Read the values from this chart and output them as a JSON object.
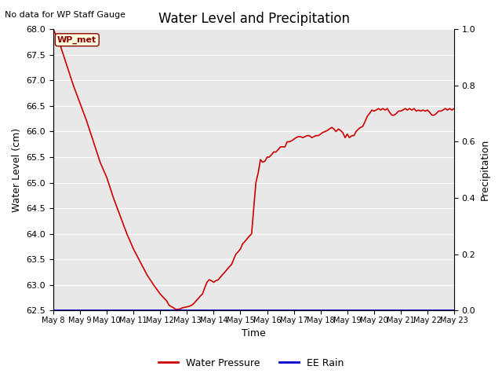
{
  "title": "Water Level and Precipitation",
  "top_left_note": "No data for WP Staff Gauge",
  "xlabel": "Time",
  "ylabel_left": "Water Level (cm)",
  "ylabel_right": "Precipitation",
  "ylim_left": [
    62.5,
    68.0
  ],
  "ylim_right": [
    0.0,
    1.0
  ],
  "yticks_left": [
    62.5,
    63.0,
    63.5,
    64.0,
    64.5,
    65.0,
    65.5,
    66.0,
    66.5,
    67.0,
    67.5,
    68.0
  ],
  "yticks_right": [
    0.0,
    0.2,
    0.4,
    0.6,
    0.8,
    1.0
  ],
  "xtick_labels": [
    "May 8",
    "May 9",
    "May 10",
    "May 11",
    "May 12",
    "May 13",
    "May 14",
    "May 15",
    "May 16",
    "May 17",
    "May 18",
    "May 19",
    "May 20",
    "May 21",
    "May 22",
    "May 23"
  ],
  "annotation_text": "WP_met",
  "line_color": "#cc0000",
  "rain_color": "#0000cc",
  "plot_bg_color": "#e8e8e8",
  "fig_bg_color": "#ffffff",
  "water_pressure_x": [
    0.0,
    0.25,
    0.5,
    0.75,
    1.0,
    1.25,
    1.5,
    1.75,
    2.0,
    2.25,
    2.5,
    2.75,
    3.0,
    3.25,
    3.5,
    3.75,
    4.0,
    4.25,
    4.33,
    4.5,
    4.58,
    4.67,
    4.75,
    4.83,
    5.0,
    5.08,
    5.17,
    5.25,
    5.33,
    5.42,
    5.5,
    5.58,
    5.67,
    5.75,
    5.83,
    5.92,
    6.0,
    6.08,
    6.17,
    6.25,
    6.33,
    6.42,
    6.5,
    6.58,
    6.67,
    6.75,
    6.83,
    6.92,
    7.0,
    7.08,
    7.17,
    7.25,
    7.33,
    7.42,
    7.5,
    7.58,
    7.67,
    7.75,
    7.83,
    7.92,
    8.0,
    8.08,
    8.17,
    8.25,
    8.33,
    8.42,
    8.5,
    8.58,
    8.67,
    8.75,
    8.83,
    8.92,
    9.0,
    9.08,
    9.17,
    9.25,
    9.33,
    9.42,
    9.5,
    9.58,
    9.67,
    9.75,
    9.83,
    9.92,
    10.0,
    10.08,
    10.17,
    10.25,
    10.33,
    10.42,
    10.5,
    10.58,
    10.67,
    10.75,
    10.83,
    10.92,
    11.0,
    11.08,
    11.17,
    11.25,
    11.33,
    11.42,
    11.5,
    11.58,
    11.67,
    11.75,
    11.83,
    11.92,
    12.0,
    12.08,
    12.17,
    12.25,
    12.33,
    12.42,
    12.5,
    12.58,
    12.67,
    12.75,
    12.83,
    12.92,
    13.0,
    13.08,
    13.17,
    13.25,
    13.33,
    13.42,
    13.5,
    13.58,
    13.67,
    13.75,
    13.83,
    13.92,
    14.0,
    14.08,
    14.17,
    14.25,
    14.33,
    14.42,
    14.5,
    14.58,
    14.67,
    14.75,
    14.83,
    14.92,
    15.0
  ],
  "water_pressure_y": [
    68.0,
    67.7,
    67.3,
    66.9,
    66.55,
    66.2,
    65.8,
    65.4,
    65.1,
    64.7,
    64.35,
    64.0,
    63.7,
    63.45,
    63.2,
    63.0,
    62.82,
    62.68,
    62.6,
    62.55,
    62.52,
    62.52,
    62.53,
    62.55,
    62.57,
    62.58,
    62.6,
    62.63,
    62.68,
    62.73,
    62.78,
    62.82,
    62.95,
    63.05,
    63.1,
    63.08,
    63.05,
    63.08,
    63.1,
    63.15,
    63.2,
    63.25,
    63.3,
    63.35,
    63.4,
    63.5,
    63.6,
    63.65,
    63.7,
    63.8,
    63.85,
    63.9,
    63.95,
    64.0,
    64.5,
    65.0,
    65.2,
    65.45,
    65.4,
    65.42,
    65.5,
    65.5,
    65.55,
    65.6,
    65.6,
    65.65,
    65.7,
    65.7,
    65.7,
    65.8,
    65.8,
    65.82,
    65.85,
    65.88,
    65.9,
    65.9,
    65.88,
    65.9,
    65.92,
    65.92,
    65.88,
    65.9,
    65.92,
    65.92,
    65.95,
    65.98,
    66.0,
    66.02,
    66.05,
    66.08,
    66.05,
    66.0,
    66.05,
    66.02,
    65.98,
    65.88,
    65.95,
    65.88,
    65.92,
    65.92,
    66.0,
    66.05,
    66.08,
    66.1,
    66.2,
    66.3,
    66.35,
    66.42,
    66.4,
    66.42,
    66.45,
    66.42,
    66.45,
    66.42,
    66.45,
    66.38,
    66.32,
    66.32,
    66.35,
    66.4,
    66.4,
    66.42,
    66.45,
    66.42,
    66.45,
    66.42,
    66.45,
    66.4,
    66.42,
    66.4,
    66.42,
    66.4,
    66.42,
    66.38,
    66.32,
    66.32,
    66.35,
    66.4,
    66.4,
    66.42,
    66.45,
    66.42,
    66.45,
    66.42,
    66.45
  ]
}
